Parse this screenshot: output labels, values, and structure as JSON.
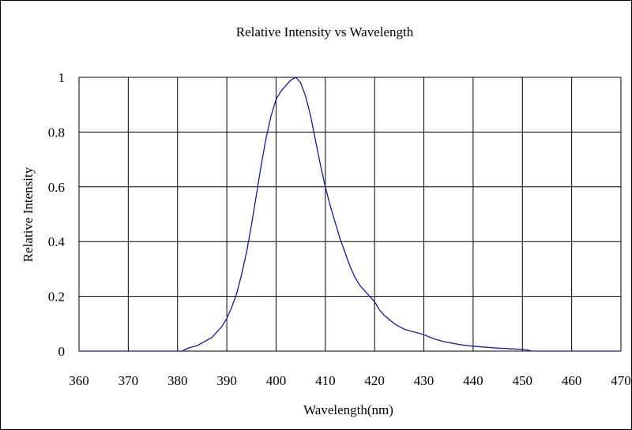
{
  "chart_data": {
    "type": "line",
    "title": "Relative Intensity vs Wavelength",
    "xlabel": "Wavelength(nm)",
    "ylabel": "Relative Intensity",
    "xlim": [
      360,
      470
    ],
    "ylim": [
      0,
      1
    ],
    "x_ticks": [
      "360",
      "370",
      "380",
      "390",
      "400",
      "410",
      "420",
      "430",
      "440",
      "450",
      "460",
      "470"
    ],
    "y_ticks": [
      "0",
      "0.2",
      "0.4",
      "0.6",
      "0.8",
      "1"
    ],
    "grid": true,
    "series_color": "#1a1a8c",
    "series": [
      {
        "x": [
          360,
          370,
          380,
          381,
          382,
          383,
          384,
          385,
          386,
          387,
          388,
          389,
          390,
          391,
          392,
          393,
          394,
          395,
          396,
          397,
          398,
          399,
          400,
          401,
          402,
          403,
          404,
          405,
          406,
          407,
          408,
          409,
          410,
          411,
          412,
          413,
          414,
          415,
          416,
          417,
          418,
          419,
          420,
          421,
          422,
          423,
          424,
          425,
          426,
          427,
          428,
          429,
          430,
          432,
          434,
          436,
          438,
          440,
          442,
          444,
          446,
          448,
          450,
          451,
          452,
          455,
          460,
          470
        ],
        "y": [
          0,
          0,
          0,
          0,
          0.01,
          0.015,
          0.02,
          0.03,
          0.04,
          0.05,
          0.07,
          0.09,
          0.12,
          0.16,
          0.21,
          0.28,
          0.36,
          0.46,
          0.57,
          0.68,
          0.78,
          0.86,
          0.92,
          0.95,
          0.97,
          0.99,
          1.0,
          0.98,
          0.93,
          0.86,
          0.77,
          0.68,
          0.6,
          0.53,
          0.47,
          0.41,
          0.36,
          0.31,
          0.27,
          0.24,
          0.22,
          0.2,
          0.18,
          0.15,
          0.13,
          0.115,
          0.1,
          0.09,
          0.08,
          0.075,
          0.07,
          0.065,
          0.06,
          0.045,
          0.035,
          0.028,
          0.022,
          0.018,
          0.015,
          0.012,
          0.01,
          0.008,
          0.006,
          0.004,
          0,
          0,
          0,
          0
        ]
      }
    ]
  }
}
